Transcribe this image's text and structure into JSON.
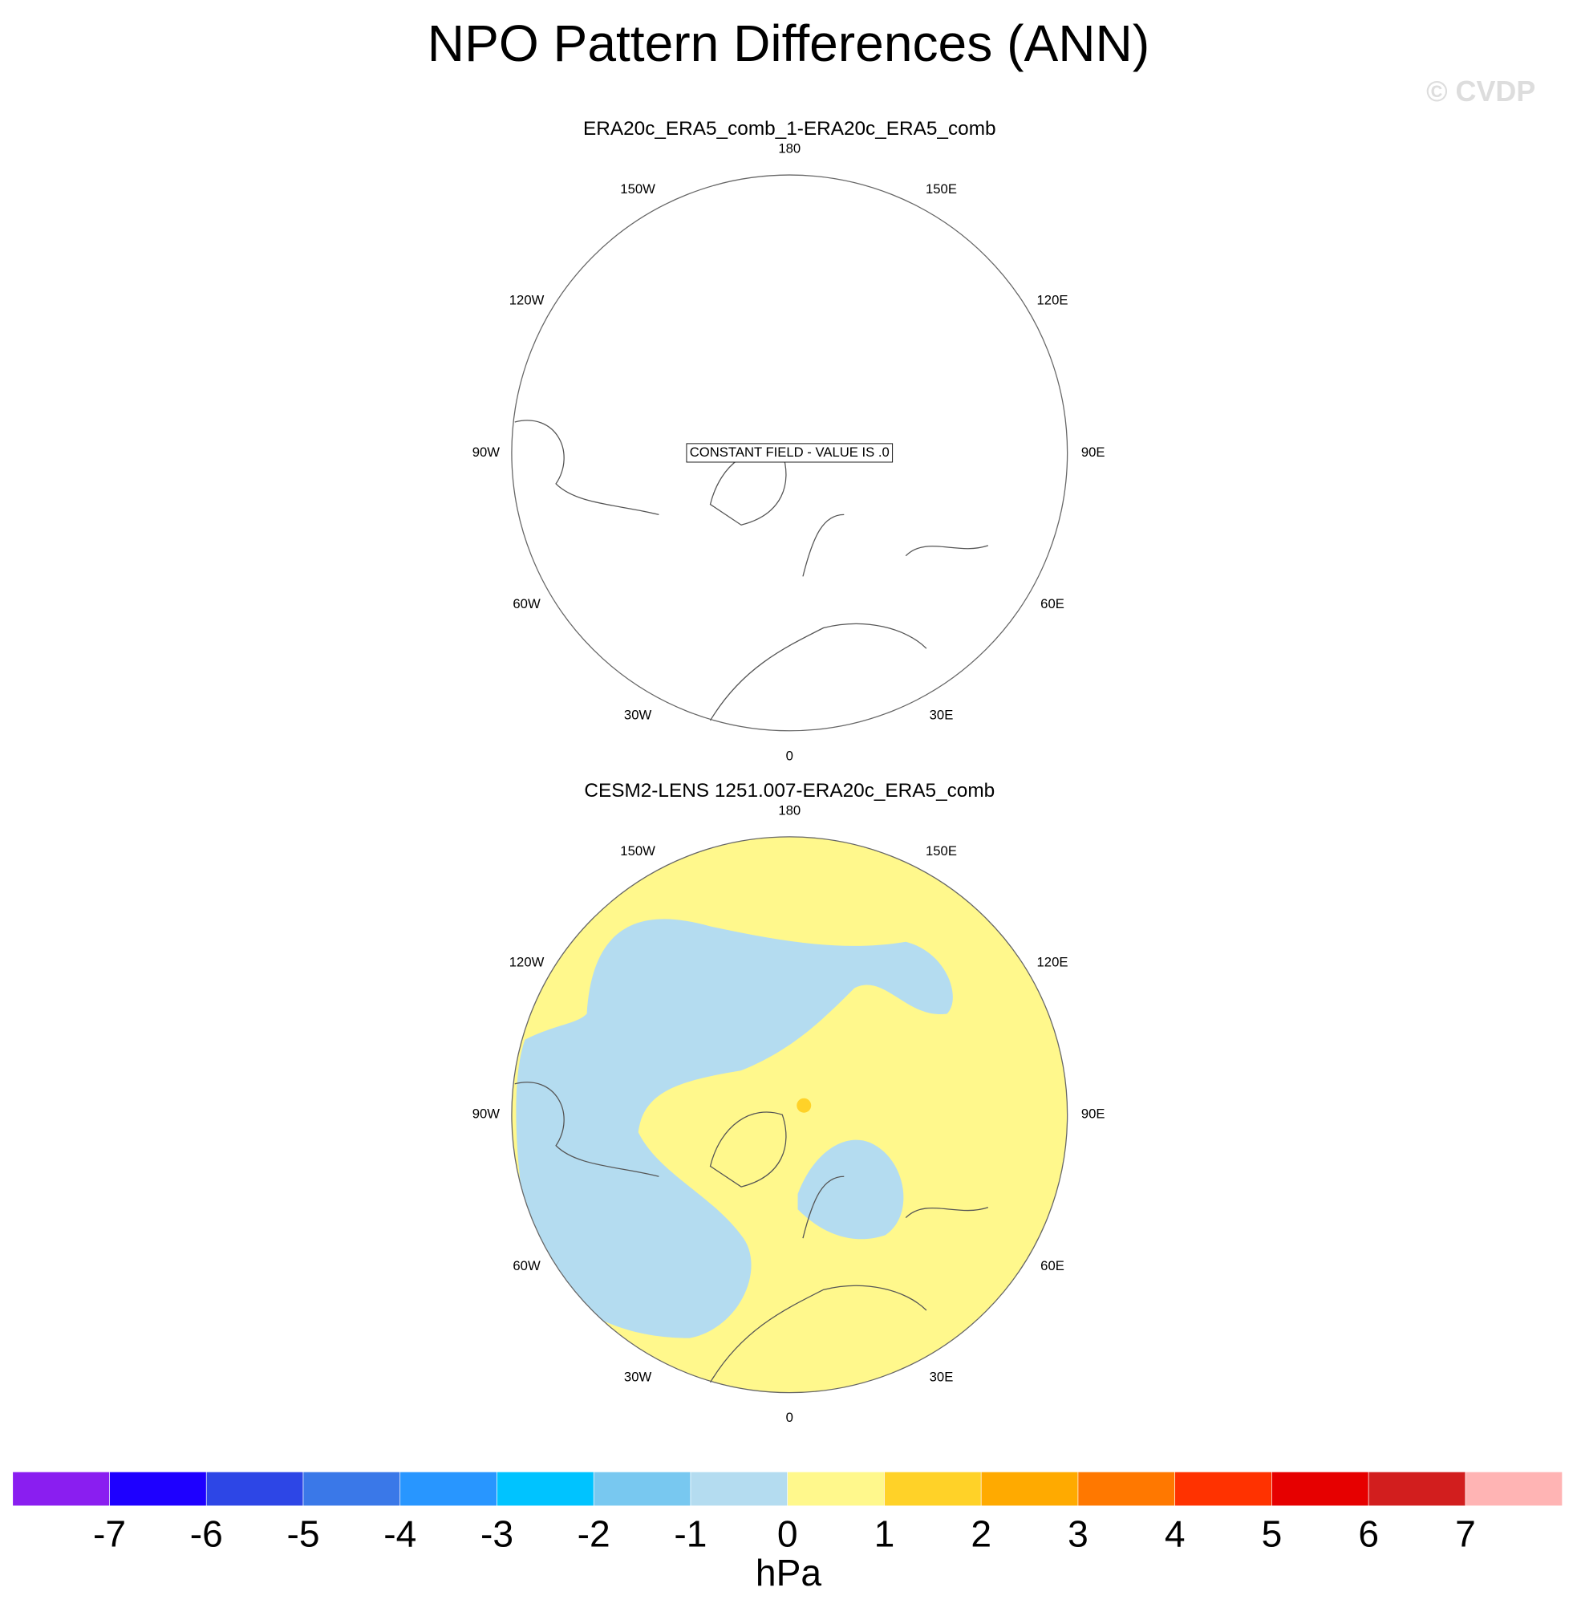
{
  "chart_data": {
    "type": "polar-map",
    "title": "NPO Pattern Differences (ANN)",
    "watermark": "© CVDP",
    "lon_ticks": [
      {
        "value": 180,
        "label": "180"
      },
      {
        "value": 150,
        "label": "150E"
      },
      {
        "value": 120,
        "label": "120E"
      },
      {
        "value": 90,
        "label": "90E"
      },
      {
        "value": 60,
        "label": "60E"
      },
      {
        "value": 30,
        "label": "30E"
      },
      0,
      {
        "value": -30,
        "label": "30W"
      },
      {
        "value": -60,
        "label": "60W"
      },
      {
        "value": -90,
        "label": "90W"
      },
      {
        "value": -120,
        "label": "120W"
      },
      {
        "value": -150,
        "label": "150W"
      }
    ],
    "panels": [
      {
        "subtitle": "ERA20c_ERA5_comb_1-ERA20c_ERA5_comb",
        "note": "CONSTANT FIELD - VALUE IS .0"
      },
      {
        "subtitle": "CESM2-LENS 1251.007-ERA20c_ERA5_comb"
      }
    ],
    "colorbar": {
      "levels": [
        -7,
        -6,
        -5,
        -4,
        -3,
        -2,
        -1,
        0,
        1,
        2,
        3,
        4,
        5,
        6,
        7
      ],
      "colors": [
        "#8a1ef0",
        "#1e00ff",
        "#2d46e6",
        "#3a78e8",
        "#2896ff",
        "#00c3ff",
        "#78c8f0",
        "#b4dcf0",
        "#fff88c",
        "#ffd228",
        "#ffaa00",
        "#ff7800",
        "#ff3200",
        "#e60000",
        "#d21e1e",
        "#ffb4b4"
      ],
      "label": "hPa"
    }
  }
}
